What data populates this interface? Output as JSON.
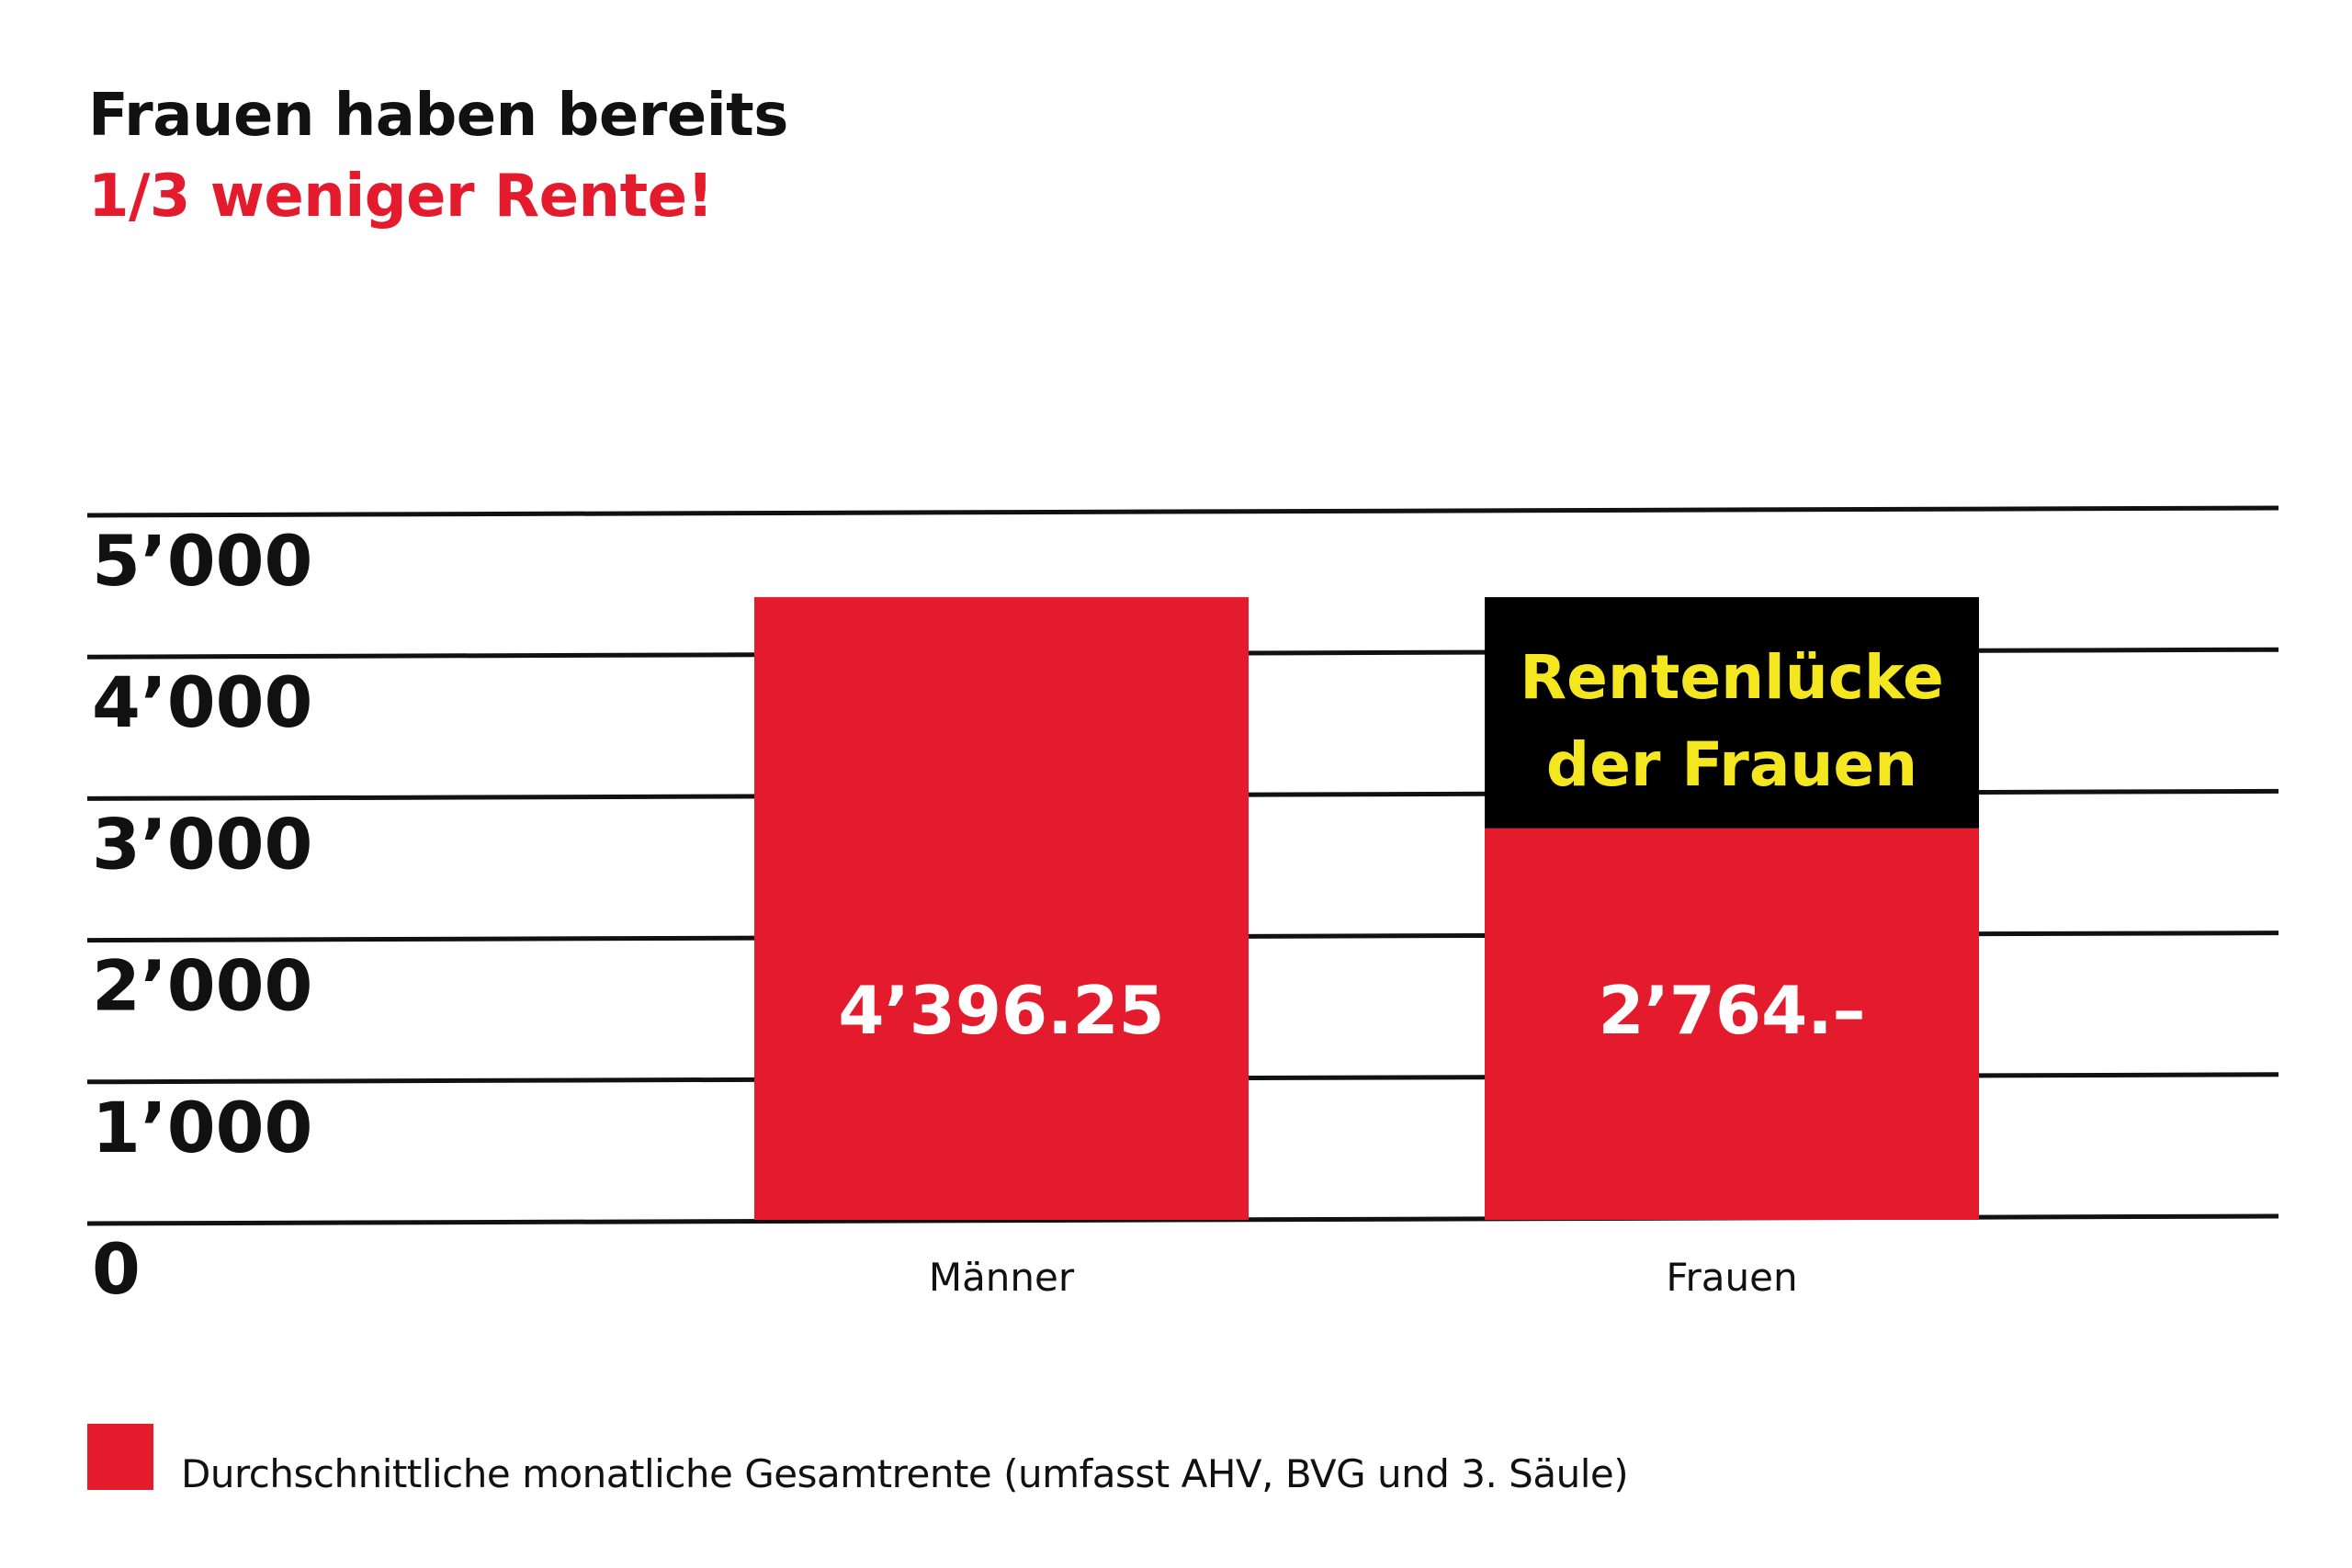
{
  "title": {
    "line1": "Frauen haben bereits",
    "line2": "1/3 weniger Rente!"
  },
  "colors": {
    "bar": "#e41b2c",
    "gap_box": "#000000",
    "gap_text": "#f5e71f",
    "grid": "#111111",
    "text": "#111111"
  },
  "chart_data": {
    "type": "bar",
    "categories": [
      "Männer",
      "Frauen"
    ],
    "values": [
      4396.25,
      2764
    ],
    "value_labels": [
      "4’396.25",
      "2’764.–"
    ],
    "ylim": [
      0,
      5000
    ],
    "yticks": [
      0,
      1000,
      2000,
      3000,
      4000,
      5000
    ],
    "ytick_labels": [
      "0",
      "1’000",
      "2’000",
      "3’000",
      "4’000",
      "5’000"
    ],
    "grid": true,
    "gap_annotation": {
      "category": "Frauen",
      "from": 2764,
      "to": 4396.25,
      "label_lines": [
        "Rentenlücke",
        "der Frauen"
      ]
    },
    "legend": {
      "position": "bottom-left",
      "entries": [
        "Durchschnittliche monatliche Gesamtrente (umfasst AHV, BVG und 3. Säule)"
      ]
    }
  }
}
